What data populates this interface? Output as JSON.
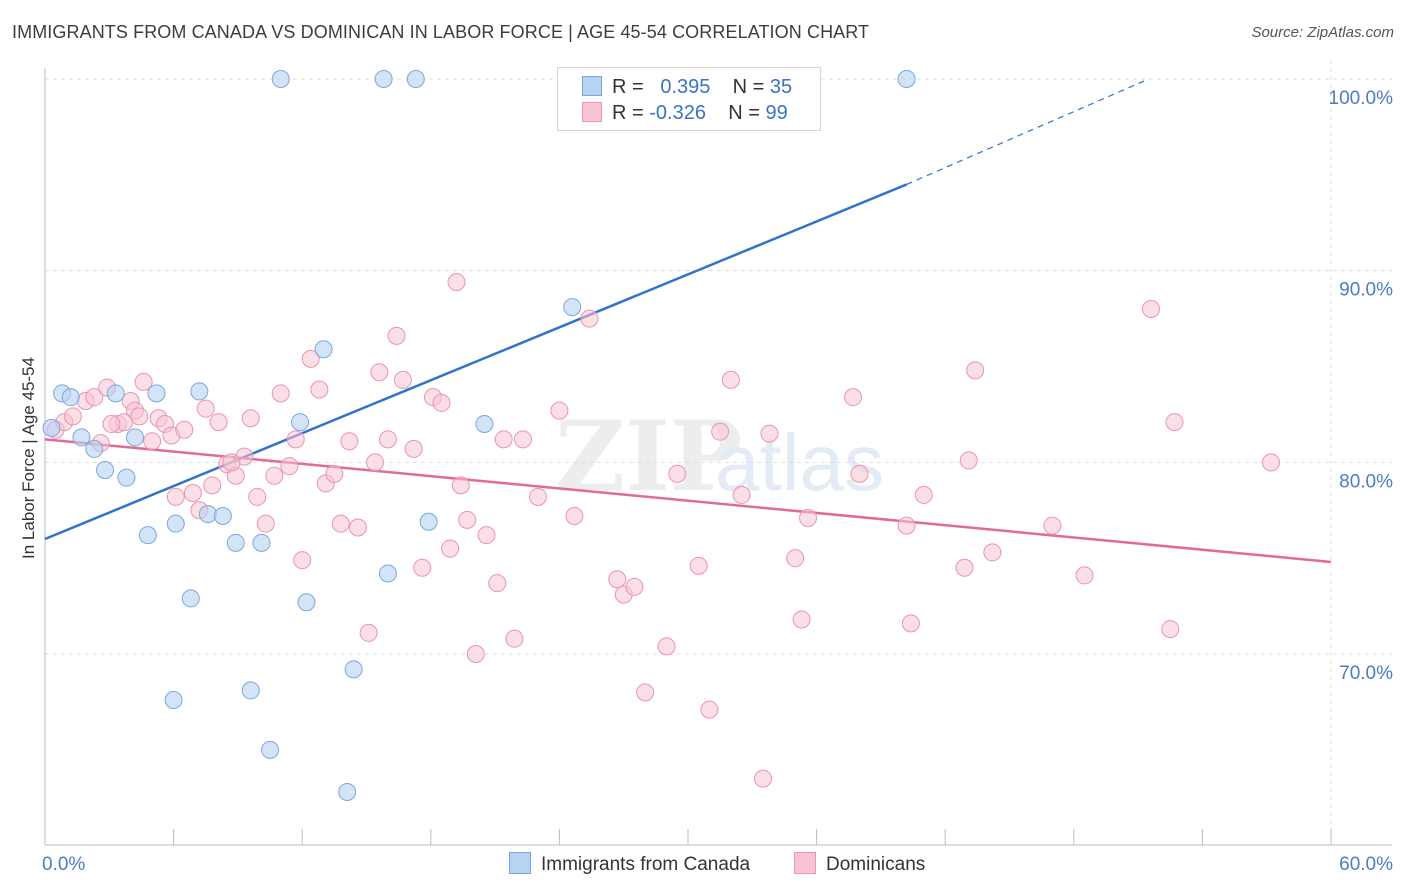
{
  "title": "IMMIGRANTS FROM CANADA VS DOMINICAN IN LABOR FORCE | AGE 45-54 CORRELATION CHART",
  "source": "Source: ZipAtlas.com",
  "legend": {
    "row1": {
      "r_label": "R =",
      "r_value": "0.395",
      "n_label": "N =",
      "n_value": "35"
    },
    "row2": {
      "r_label": "R =",
      "r_value": "-0.326",
      "n_label": "N =",
      "n_value": "99"
    }
  },
  "bottom_legend": {
    "series1": "Immigrants from Canada",
    "series2": "Dominicans"
  },
  "colors": {
    "blue_fill": "#b8d2f2",
    "blue_stroke": "#7aa8e0",
    "blue_line": "#2f73cc",
    "pink_fill": "#f7c4d4",
    "pink_stroke": "#ee93b0",
    "pink_line": "#e06b96",
    "tick_text": "#4a7cc7",
    "grid": "#dedede"
  },
  "chart_data": {
    "type": "scatter",
    "title": "IMMIGRANTS FROM CANADA VS DOMINICAN IN LABOR FORCE | AGE 45-54 CORRELATION CHART",
    "xlabel": "",
    "ylabel": "In Labor Force | Age 45-54",
    "xlim": [
      0,
      60
    ],
    "ylim": [
      61,
      102
    ],
    "x_tick_labels": [
      "0.0%",
      "60.0%"
    ],
    "y_ticks": [
      70,
      80,
      90,
      100
    ],
    "y_tick_labels": [
      "70.0%",
      "80.0%",
      "90.0%",
      "100.0%"
    ],
    "grid": true,
    "watermark": "ZIPatlas",
    "series": [
      {
        "name": "Immigrants from Canada",
        "color": "blue",
        "R": 0.395,
        "N": 35,
        "trend": {
          "x0": 0,
          "y0": 76.0,
          "x1": 40.2,
          "y1": 94.5,
          "dash_to_x": 51.5,
          "dash_to_y": 100.0
        },
        "points": [
          [
            0.3,
            81.8
          ],
          [
            0.8,
            83.6
          ],
          [
            1.2,
            83.4
          ],
          [
            1.7,
            81.3
          ],
          [
            2.3,
            80.7
          ],
          [
            2.8,
            79.6
          ],
          [
            3.3,
            83.6
          ],
          [
            3.8,
            79.2
          ],
          [
            4.2,
            81.3
          ],
          [
            4.8,
            76.2
          ],
          [
            5.2,
            83.6
          ],
          [
            6.1,
            76.8
          ],
          [
            6.8,
            72.9
          ],
          [
            7.2,
            83.7
          ],
          [
            7.6,
            77.3
          ],
          [
            8.3,
            77.2
          ],
          [
            8.9,
            75.8
          ],
          [
            9.6,
            68.1
          ],
          [
            10.1,
            75.8
          ],
          [
            10.5,
            65.0
          ],
          [
            11.0,
            100.0
          ],
          [
            11.9,
            82.1
          ],
          [
            12.2,
            72.7
          ],
          [
            13.0,
            85.9
          ],
          [
            14.1,
            62.8
          ],
          [
            14.4,
            69.2
          ],
          [
            15.8,
            100.0
          ],
          [
            16.0,
            74.2
          ],
          [
            17.3,
            100.0
          ],
          [
            17.9,
            76.9
          ],
          [
            20.5,
            82.0
          ],
          [
            24.6,
            88.1
          ],
          [
            26.2,
            100.0
          ],
          [
            6.0,
            67.6
          ],
          [
            40.2,
            100.0
          ]
        ]
      },
      {
        "name": "Dominicans",
        "color": "pink",
        "R": -0.326,
        "N": 99,
        "trend": {
          "x0": 0,
          "y0": 81.2,
          "x1": 60,
          "y1": 74.8
        },
        "points": [
          [
            0.5,
            81.7
          ],
          [
            0.9,
            82.1
          ],
          [
            1.3,
            82.4
          ],
          [
            1.9,
            83.2
          ],
          [
            2.3,
            83.4
          ],
          [
            2.6,
            81.0
          ],
          [
            2.9,
            83.9
          ],
          [
            3.4,
            82.0
          ],
          [
            3.7,
            82.1
          ],
          [
            4.0,
            83.2
          ],
          [
            4.2,
            82.7
          ],
          [
            4.6,
            84.2
          ],
          [
            5.0,
            81.1
          ],
          [
            5.3,
            82.3
          ],
          [
            5.6,
            82.0
          ],
          [
            5.9,
            81.4
          ],
          [
            6.1,
            78.2
          ],
          [
            6.5,
            81.7
          ],
          [
            6.9,
            78.4
          ],
          [
            7.2,
            77.5
          ],
          [
            7.5,
            82.8
          ],
          [
            7.8,
            78.8
          ],
          [
            8.1,
            82.1
          ],
          [
            8.5,
            79.9
          ],
          [
            8.9,
            79.3
          ],
          [
            9.3,
            80.3
          ],
          [
            9.6,
            82.3
          ],
          [
            9.9,
            78.2
          ],
          [
            10.3,
            76.8
          ],
          [
            10.7,
            79.3
          ],
          [
            11.0,
            83.6
          ],
          [
            11.4,
            79.8
          ],
          [
            11.7,
            81.2
          ],
          [
            12.0,
            74.9
          ],
          [
            12.4,
            85.4
          ],
          [
            12.8,
            83.8
          ],
          [
            13.1,
            78.9
          ],
          [
            13.5,
            79.4
          ],
          [
            13.8,
            76.8
          ],
          [
            14.2,
            81.1
          ],
          [
            14.6,
            76.6
          ],
          [
            15.1,
            71.1
          ],
          [
            15.4,
            80.0
          ],
          [
            15.6,
            84.7
          ],
          [
            16.0,
            81.2
          ],
          [
            16.4,
            86.6
          ],
          [
            16.7,
            84.3
          ],
          [
            17.2,
            80.7
          ],
          [
            17.6,
            74.5
          ],
          [
            18.1,
            83.4
          ],
          [
            18.5,
            83.1
          ],
          [
            18.9,
            75.5
          ],
          [
            19.2,
            89.4
          ],
          [
            19.4,
            78.8
          ],
          [
            19.7,
            77.0
          ],
          [
            20.1,
            70.0
          ],
          [
            20.6,
            76.2
          ],
          [
            21.1,
            73.7
          ],
          [
            21.4,
            81.2
          ],
          [
            21.9,
            70.8
          ],
          [
            22.3,
            81.2
          ],
          [
            23.0,
            78.2
          ],
          [
            24.0,
            82.7
          ],
          [
            24.7,
            77.2
          ],
          [
            25.4,
            87.5
          ],
          [
            26.7,
            73.9
          ],
          [
            27.0,
            73.1
          ],
          [
            27.5,
            73.5
          ],
          [
            28.0,
            68.0
          ],
          [
            29.0,
            70.4
          ],
          [
            29.5,
            79.4
          ],
          [
            30.5,
            74.6
          ],
          [
            31.0,
            67.1
          ],
          [
            31.5,
            81.6
          ],
          [
            32.0,
            84.3
          ],
          [
            32.5,
            78.3
          ],
          [
            33.5,
            63.5
          ],
          [
            33.8,
            81.5
          ],
          [
            35.0,
            75.0
          ],
          [
            35.3,
            71.8
          ],
          [
            35.6,
            77.1
          ],
          [
            37.7,
            83.4
          ],
          [
            38.0,
            79.4
          ],
          [
            40.2,
            76.7
          ],
          [
            40.4,
            71.6
          ],
          [
            41.0,
            78.3
          ],
          [
            42.9,
            74.5
          ],
          [
            43.1,
            80.1
          ],
          [
            43.4,
            84.8
          ],
          [
            44.2,
            75.3
          ],
          [
            47.0,
            76.7
          ],
          [
            48.5,
            74.1
          ],
          [
            51.6,
            88.0
          ],
          [
            52.5,
            71.3
          ],
          [
            52.7,
            82.1
          ],
          [
            57.2,
            80.0
          ],
          [
            3.1,
            82.0
          ],
          [
            4.4,
            82.4
          ],
          [
            8.7,
            80.0
          ]
        ]
      }
    ]
  }
}
